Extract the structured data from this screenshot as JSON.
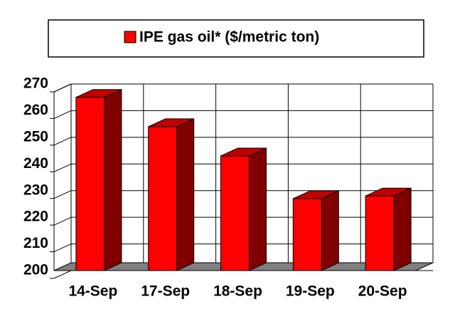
{
  "chart_data": {
    "type": "bar",
    "categories": [
      "14-Sep",
      "17-Sep",
      "18-Sep",
      "19-Sep",
      "20-Sep"
    ],
    "series": [
      {
        "name": "IPE gas oil* ($/metric ton)",
        "color": "#ff0000",
        "values": [
          265,
          254,
          243,
          227,
          228
        ]
      }
    ],
    "ylim": [
      200,
      270
    ],
    "yticks": [
      200,
      210,
      220,
      230,
      240,
      250,
      260,
      270
    ],
    "grid": true,
    "legend": "top"
  }
}
